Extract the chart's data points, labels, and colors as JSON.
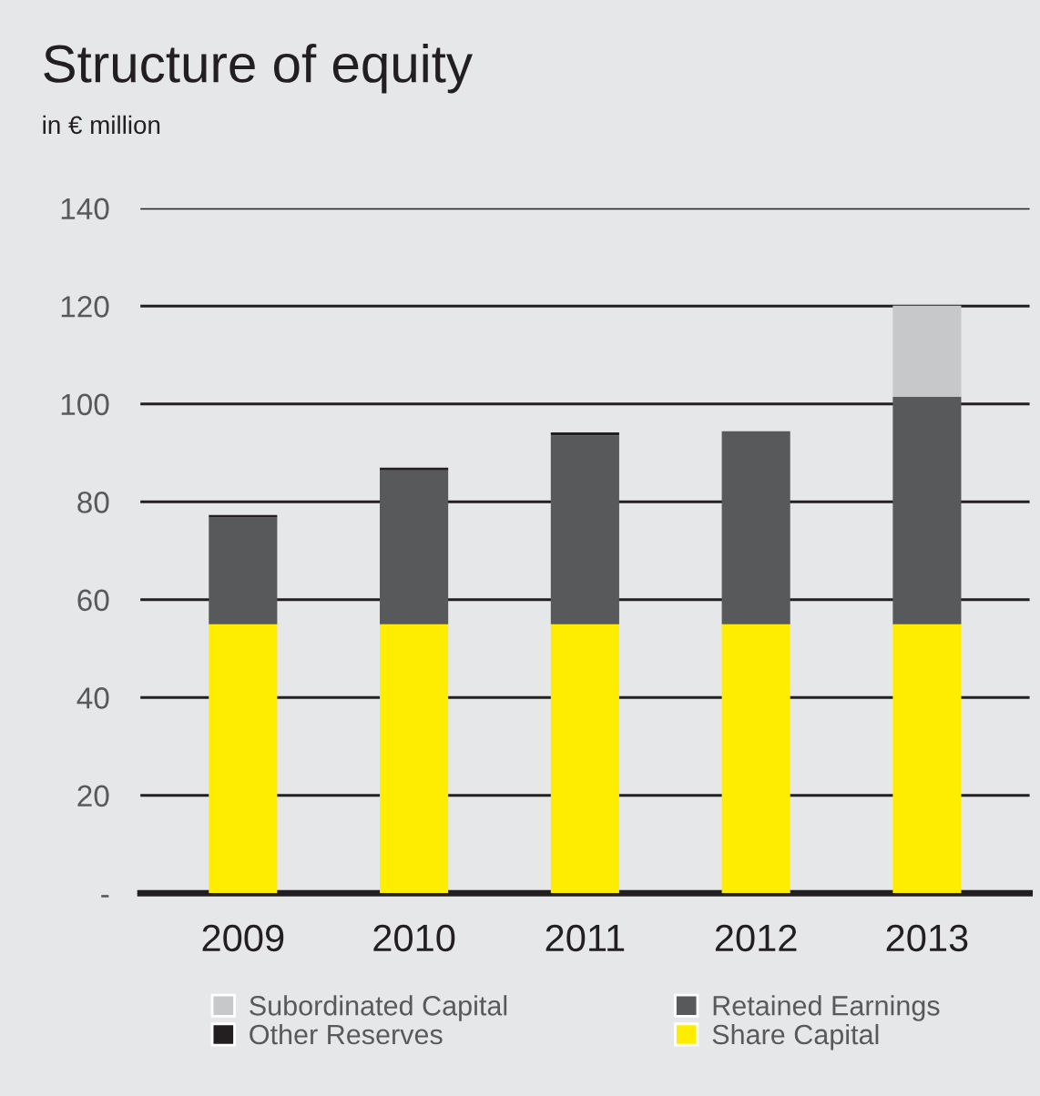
{
  "chart_data": {
    "type": "bar",
    "title": "Structure of equity",
    "subtitle": "in € million",
    "categories": [
      "2009",
      "2010",
      "2011",
      "2012",
      "2013"
    ],
    "stacked": true,
    "series": [
      {
        "name": "Share Capital",
        "color": "#ffed00",
        "values": [
          55,
          55,
          55,
          55,
          55
        ]
      },
      {
        "name": "Retained Earnings",
        "color": "#58595b",
        "values": [
          21.8,
          31.4,
          38.6,
          39.4,
          46.5
        ]
      },
      {
        "name": "Other Reserves",
        "color": "#231f20",
        "values": [
          0.5,
          0.6,
          0.6,
          null,
          null
        ]
      },
      {
        "name": "Subordinated Capital",
        "color": "#c7c8ca",
        "values": [
          null,
          null,
          null,
          null,
          18.6
        ]
      }
    ],
    "ylim": [
      0,
      140
    ],
    "yticks": [
      {
        "value": 0,
        "label": "-"
      },
      20,
      40,
      60,
      80,
      100,
      120,
      140
    ],
    "grid": "y",
    "legend": "bottom"
  }
}
